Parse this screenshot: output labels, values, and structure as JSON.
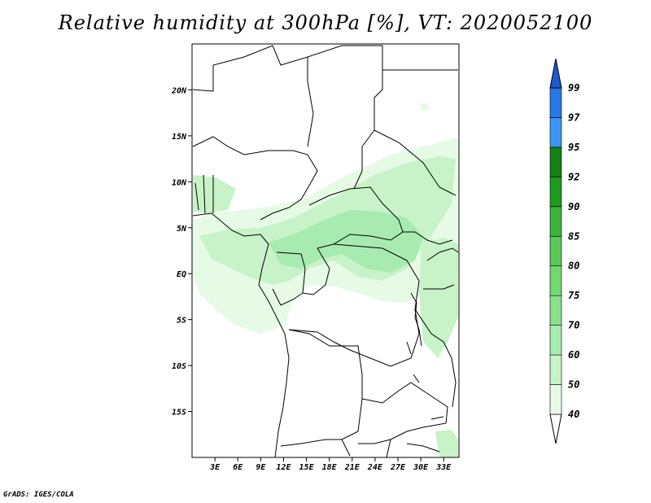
{
  "title": "Relative humidity at 300hPa [%], VT: 2020052100",
  "credit": "GrADS: IGES/COLA",
  "map": {
    "lat_range": [
      -20,
      25
    ],
    "lon_range": [
      0,
      35
    ],
    "lat_labels": [
      {
        "lat": 20,
        "label": "20N"
      },
      {
        "lat": 15,
        "label": "15N"
      },
      {
        "lat": 10,
        "label": "10N"
      },
      {
        "lat": 5,
        "label": "5N"
      },
      {
        "lat": 0,
        "label": "EQ"
      },
      {
        "lat": -5,
        "label": "5S"
      },
      {
        "lat": -10,
        "label": "10S"
      },
      {
        "lat": -15,
        "label": "15S"
      }
    ],
    "lon_labels": [
      {
        "lon": 3,
        "label": "3E"
      },
      {
        "lon": 6,
        "label": "6E"
      },
      {
        "lon": 9,
        "label": "9E"
      },
      {
        "lon": 12,
        "label": "12E"
      },
      {
        "lon": 15,
        "label": "15E"
      },
      {
        "lon": 18,
        "label": "18E"
      },
      {
        "lon": 21,
        "label": "21E"
      },
      {
        "lon": 24,
        "label": "24E"
      },
      {
        "lon": 27,
        "label": "27E"
      },
      {
        "lon": 30,
        "label": "30E"
      },
      {
        "lon": 33,
        "label": "33E"
      }
    ]
  },
  "colorbar": {
    "levels": [
      "40",
      "50",
      "60",
      "70",
      "75",
      "80",
      "85",
      "90",
      "92",
      "95",
      "97",
      "99"
    ],
    "colors": [
      "#ffffff",
      "#e6fae6",
      "#c8f2c8",
      "#a8ebb0",
      "#8ce08c",
      "#72d872",
      "#58c858",
      "#3cb43c",
      "#1e9a1e",
      "#148214",
      "#3c96f0",
      "#2878e6",
      "#1e5ad2"
    ]
  },
  "colors": {
    "land_border": "#000000",
    "humidity_light": "#e6fae6",
    "humidity_mid": "#c8f2c8",
    "humidity_strong": "#a8ebb0"
  }
}
